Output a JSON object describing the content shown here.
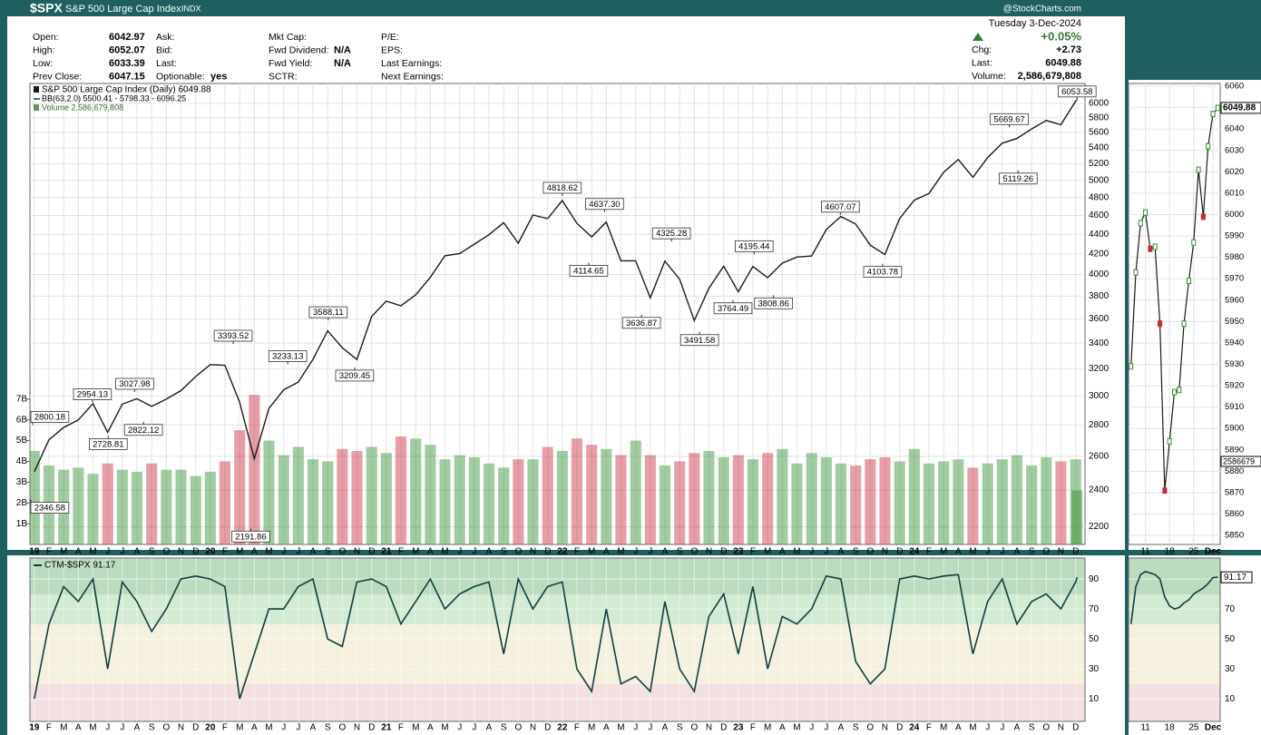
{
  "header": {
    "symbol": "$SPX",
    "name": "S&P 500 Large Cap Index",
    "exchange": "INDX",
    "brand": "@StockCharts.com",
    "date": "Tuesday  3-Dec-2024",
    "change_pct": "+0.05%",
    "fields": [
      [
        {
          "label": "Open:",
          "value": "6042.97"
        },
        {
          "label": "High:",
          "value": "6052.07"
        },
        {
          "label": "Low:",
          "value": "6033.39"
        },
        {
          "label": "Prev Close:",
          "value": "6047.15"
        }
      ],
      [
        {
          "label": "Ask:"
        },
        {
          "label": "Bid:"
        },
        {
          "label": "Last:"
        },
        {
          "label": "Optionable:",
          "value": "yes"
        }
      ],
      [
        {
          "label": "Mkt Cap:"
        },
        {
          "label": "Fwd Dividend:",
          "value": "N/A"
        },
        {
          "label": "Fwd Yield:",
          "value": "N/A"
        },
        {
          "label": "SCTR:"
        }
      ],
      [
        {
          "label": "P/E:"
        },
        {
          "label": "EPS:"
        },
        {
          "label": "Last Earnings:"
        },
        {
          "label": "Next Earnings:"
        }
      ]
    ],
    "right_fields": [
      {
        "label": "Chg:",
        "value": "+2.73"
      },
      {
        "label": "Last:",
        "value": "6049.88"
      },
      {
        "label": "Volume:",
        "value": "2,586,679,808"
      }
    ]
  },
  "chart_data": [
    {
      "type": "line",
      "log_scale": true,
      "grid": true,
      "notes": [
        "BB(63,2.0) 5500.41 - 5798.33 - 6096.25"
      ],
      "xlim": [
        2018.975,
        2024.97
      ],
      "ylim": [
        2110,
        6290
      ],
      "yticks": [
        2200,
        2400,
        2600,
        2800,
        3000,
        3200,
        3400,
        3600,
        3800,
        4000,
        4200,
        4400,
        4600,
        4800,
        5000,
        5200,
        5400,
        5600,
        5800,
        6000
      ],
      "xticks": [
        {
          "value": 2019,
          "label": "19"
        },
        {
          "value": 2019.083,
          "label": "F"
        },
        {
          "value": 2019.167,
          "label": "M"
        },
        {
          "value": 2019.25,
          "label": "A"
        },
        {
          "value": 2019.333,
          "label": "M"
        },
        {
          "value": 2019.417,
          "label": "J"
        },
        {
          "value": 2019.5,
          "label": "J"
        },
        {
          "value": 2019.583,
          "label": "A"
        },
        {
          "value": 2019.667,
          "label": "S"
        },
        {
          "value": 2019.75,
          "label": "O"
        },
        {
          "value": 2019.833,
          "label": "N"
        },
        {
          "value": 2019.917,
          "label": "D"
        },
        {
          "value": 2020,
          "label": "20"
        },
        {
          "value": 2020.083,
          "label": "F"
        },
        {
          "value": 2020.167,
          "label": "M"
        },
        {
          "value": 2020.25,
          "label": "A"
        },
        {
          "value": 2020.333,
          "label": "M"
        },
        {
          "value": 2020.417,
          "label": "J"
        },
        {
          "value": 2020.5,
          "label": "J"
        },
        {
          "value": 2020.583,
          "label": "A"
        },
        {
          "value": 2020.667,
          "label": "S"
        },
        {
          "value": 2020.75,
          "label": "O"
        },
        {
          "value": 2020.833,
          "label": "N"
        },
        {
          "value": 2020.917,
          "label": "D"
        },
        {
          "value": 2021,
          "label": "21"
        },
        {
          "value": 2021.083,
          "label": "F"
        },
        {
          "value": 2021.167,
          "label": "M"
        },
        {
          "value": 2021.25,
          "label": "A"
        },
        {
          "value": 2021.333,
          "label": "M"
        },
        {
          "value": 2021.417,
          "label": "J"
        },
        {
          "value": 2021.5,
          "label": "J"
        },
        {
          "value": 2021.583,
          "label": "A"
        },
        {
          "value": 2021.667,
          "label": "S"
        },
        {
          "value": 2021.75,
          "label": "O"
        },
        {
          "value": 2021.833,
          "label": "N"
        },
        {
          "value": 2021.917,
          "label": "D"
        },
        {
          "value": 2022,
          "label": "22"
        },
        {
          "value": 2022.083,
          "label": "F"
        },
        {
          "value": 2022.167,
          "label": "M"
        },
        {
          "value": 2022.25,
          "label": "A"
        },
        {
          "value": 2022.333,
          "label": "M"
        },
        {
          "value": 2022.417,
          "label": "J"
        },
        {
          "value": 2022.5,
          "label": "J"
        },
        {
          "value": 2022.583,
          "label": "A"
        },
        {
          "value": 2022.667,
          "label": "S"
        },
        {
          "value": 2022.75,
          "label": "O"
        },
        {
          "value": 2022.833,
          "label": "N"
        },
        {
          "value": 2022.917,
          "label": "D"
        },
        {
          "value": 2023,
          "label": "23"
        },
        {
          "value": 2023.083,
          "label": "F"
        },
        {
          "value": 2023.167,
          "label": "M"
        },
        {
          "value": 2023.25,
          "label": "A"
        },
        {
          "value": 2023.333,
          "label": "M"
        },
        {
          "value": 2023.417,
          "label": "J"
        },
        {
          "value": 2023.5,
          "label": "J"
        },
        {
          "value": 2023.583,
          "label": "A"
        },
        {
          "value": 2023.667,
          "label": "S"
        },
        {
          "value": 2023.75,
          "label": "O"
        },
        {
          "value": 2023.833,
          "label": "N"
        },
        {
          "value": 2023.917,
          "label": "D"
        },
        {
          "value": 2024,
          "label": "24"
        },
        {
          "value": 2024.083,
          "label": "F"
        },
        {
          "value": 2024.167,
          "label": "M"
        },
        {
          "value": 2024.25,
          "label": "A"
        },
        {
          "value": 2024.333,
          "label": "M"
        },
        {
          "value": 2024.417,
          "label": "J"
        },
        {
          "value": 2024.5,
          "label": "J"
        },
        {
          "value": 2024.583,
          "label": "A"
        },
        {
          "value": 2024.667,
          "label": "S"
        },
        {
          "value": 2024.75,
          "label": "O"
        },
        {
          "value": 2024.833,
          "label": "N"
        },
        {
          "value": 2024.917,
          "label": "D"
        }
      ],
      "x": [
        2019,
        2019.083,
        2019.167,
        2019.25,
        2019.333,
        2019.417,
        2019.5,
        2019.583,
        2019.667,
        2019.75,
        2019.833,
        2019.917,
        2020,
        2020.083,
        2020.167,
        2020.25,
        2020.333,
        2020.417,
        2020.5,
        2020.583,
        2020.667,
        2020.75,
        2020.833,
        2020.917,
        2021,
        2021.083,
        2021.167,
        2021.25,
        2021.333,
        2021.417,
        2021.5,
        2021.583,
        2021.667,
        2021.75,
        2021.833,
        2021.917,
        2022,
        2022.083,
        2022.167,
        2022.25,
        2022.333,
        2022.417,
        2022.5,
        2022.583,
        2022.667,
        2022.75,
        2022.833,
        2022.917,
        2023,
        2023.083,
        2023.167,
        2023.25,
        2023.333,
        2023.417,
        2023.5,
        2023.583,
        2023.667,
        2023.75,
        2023.833,
        2023.917,
        2024,
        2024.083,
        2024.167,
        2024.25,
        2024.333,
        2024.417,
        2024.5,
        2024.583,
        2024.667,
        2024.75,
        2024.833,
        2024.917,
        2024.925
      ],
      "series": [
        {
          "name": "S&P 500 Large Cap Index (Daily) 6049.88",
          "color": "#1a1a1a",
          "up_color": "#2e8b2e",
          "down_color": "#c8283c",
          "values": [
            2506,
            2704,
            2784,
            2834,
            2946,
            2752,
            2942,
            2980,
            2926,
            2977,
            3038,
            3141,
            3231,
            3226,
            2954,
            2585,
            2912,
            3044,
            3100,
            3271,
            3500,
            3363,
            3270,
            3622,
            3756,
            3714,
            3811,
            3973,
            4181,
            4204,
            4298,
            4395,
            4523,
            4308,
            4605,
            4567,
            4766,
            4516,
            4374,
            4530,
            4132,
            4132,
            3785,
            4130,
            3955,
            3586,
            3872,
            4080,
            3840,
            4077,
            3970,
            4109,
            4169,
            4180,
            4450,
            4589,
            4508,
            4288,
            4194,
            4568,
            4770,
            4846,
            5096,
            5254,
            5036,
            5278,
            5460,
            5522,
            5648,
            5762,
            5705,
            6032,
            6049.88
          ]
        }
      ],
      "annotations": [
        {
          "x": 2018.98,
          "value": 2346.58,
          "label": "2346.58"
        },
        {
          "x": 2018.99,
          "value": 2800.18,
          "label": "2800.18"
        },
        {
          "x": 2019.33,
          "value": 2954.13,
          "label": "2954.13"
        },
        {
          "x": 2019.42,
          "value": 2728.81,
          "label": "2728.81"
        },
        {
          "x": 2019.57,
          "value": 3027.98,
          "label": "3027.98"
        },
        {
          "x": 2019.62,
          "value": 2822.12,
          "label": "2822.12"
        },
        {
          "x": 2020.13,
          "value": 3393.52,
          "label": "3393.52"
        },
        {
          "x": 2020.23,
          "value": 2191.86,
          "label": "2191.86"
        },
        {
          "x": 2020.44,
          "value": 3233.13,
          "label": "3233.13"
        },
        {
          "x": 2020.67,
          "value": 3588.11,
          "label": "3588.11"
        },
        {
          "x": 2020.82,
          "value": 3209.45,
          "label": "3209.45"
        },
        {
          "x": 2022.0,
          "value": 4818.62,
          "label": "4818.62"
        },
        {
          "x": 2022.15,
          "value": 4114.65,
          "label": "4114.65"
        },
        {
          "x": 2022.24,
          "value": 4637.3,
          "label": "4637.30"
        },
        {
          "x": 2022.45,
          "value": 3636.87,
          "label": "3636.87"
        },
        {
          "x": 2022.62,
          "value": 4325.28,
          "label": "4325.28"
        },
        {
          "x": 2022.78,
          "value": 3491.58,
          "label": "3491.58"
        },
        {
          "x": 2022.97,
          "value": 3764.49,
          "label": "3764.49"
        },
        {
          "x": 2023.09,
          "value": 4195.44,
          "label": "4195.44"
        },
        {
          "x": 2023.2,
          "value": 3808.86,
          "label": "3808.86"
        },
        {
          "x": 2023.58,
          "value": 4607.07,
          "label": "4607.07"
        },
        {
          "x": 2023.82,
          "value": 4103.78,
          "label": "4103.78"
        },
        {
          "x": 2024.54,
          "value": 5669.67,
          "label": "5669.67"
        },
        {
          "x": 2024.59,
          "value": 5119.26,
          "label": "5119.26"
        },
        {
          "x": 2024.925,
          "value": 6053.58,
          "label": "6053.58"
        }
      ]
    },
    {
      "type": "bar",
      "ylim": [
        0,
        22.2
      ],
      "yticks": [
        {
          "value": 1,
          "label": "1B"
        },
        {
          "value": 2,
          "label": "2B"
        },
        {
          "value": 3,
          "label": "3B"
        },
        {
          "value": 4,
          "label": "4B"
        },
        {
          "value": 5,
          "label": "5B"
        },
        {
          "value": 6,
          "label": "6B"
        },
        {
          "value": 7,
          "label": "7B"
        }
      ],
      "series": [
        {
          "name": "Volume 2,586,679,808",
          "color": "#5a9a5a",
          "values": [
            4.5,
            3.8,
            3.6,
            3.7,
            3.4,
            3.9,
            3.6,
            3.5,
            3.9,
            3.6,
            3.6,
            3.3,
            3.5,
            4.0,
            5.5,
            7.2,
            5.0,
            4.3,
            4.7,
            4.1,
            4.0,
            4.6,
            4.5,
            4.7,
            4.4,
            5.2,
            5.1,
            4.8,
            4.1,
            4.3,
            4.2,
            3.9,
            3.7,
            4.1,
            4.1,
            4.7,
            4.5,
            5.1,
            4.8,
            4.6,
            4.3,
            5.0,
            4.3,
            3.8,
            4.0,
            4.4,
            4.5,
            4.2,
            4.3,
            4.1,
            4.4,
            4.6,
            3.9,
            4.4,
            4.2,
            3.9,
            3.8,
            4.1,
            4.2,
            4.0,
            4.6,
            3.9,
            4.0,
            4.1,
            3.7,
            3.9,
            4.1,
            4.3,
            3.8,
            4.2,
            4.0,
            4.1,
            2.59
          ]
        }
      ]
    },
    {
      "type": "line",
      "ylim": [
        -5,
        104
      ],
      "yticks": [
        10,
        30,
        50,
        70,
        90
      ],
      "series": [
        {
          "name": "CTM-$SPX 91.17",
          "color": "#0e3f40",
          "values": [
            10,
            60,
            85,
            75,
            90,
            30,
            88,
            75,
            55,
            70,
            90,
            92,
            90,
            85,
            10,
            40,
            70,
            70,
            85,
            90,
            50,
            45,
            88,
            90,
            85,
            60,
            75,
            90,
            70,
            80,
            85,
            88,
            40,
            90,
            70,
            85,
            88,
            30,
            15,
            70,
            20,
            25,
            15,
            75,
            30,
            15,
            65,
            80,
            40,
            85,
            30,
            65,
            60,
            70,
            92,
            90,
            35,
            20,
            30,
            90,
            92,
            90,
            92,
            93,
            40,
            75,
            90,
            60,
            75,
            80,
            70,
            88,
            91.17
          ]
        }
      ]
    },
    {
      "type": "line",
      "ylim": [
        5845.8,
        6061.3
      ],
      "yticks": [
        5850,
        5860,
        5870,
        5880,
        5890,
        5900,
        5910,
        5920,
        5930,
        5940,
        5950,
        5960,
        5970,
        5980,
        5990,
        6000,
        6010,
        6020,
        6030,
        6040,
        6050,
        6060
      ],
      "categories": [
        null,
        null,
        null,
        "11",
        null,
        null,
        null,
        null,
        "18",
        null,
        null,
        null,
        null,
        "25",
        null,
        null,
        null,
        "Dec",
        null
      ],
      "volume_label": "2586679",
      "series": [
        {
          "color": "#1a1a1a",
          "values": [
            5929,
            5973,
            5996,
            6001,
            5984,
            5985,
            5949,
            5871,
            5894,
            5917,
            5918,
            5949,
            5969,
            5987,
            6021,
            5999,
            6032,
            6047,
            6049.88
          ]
        }
      ]
    },
    {
      "type": "line",
      "series": [
        {
          "color": "#0e3f40",
          "values": [
            60,
            85,
            93,
            95,
            94,
            93,
            90,
            78,
            72,
            70,
            71,
            74,
            76,
            80,
            82,
            84,
            87,
            91,
            91.17
          ]
        }
      ]
    }
  ]
}
